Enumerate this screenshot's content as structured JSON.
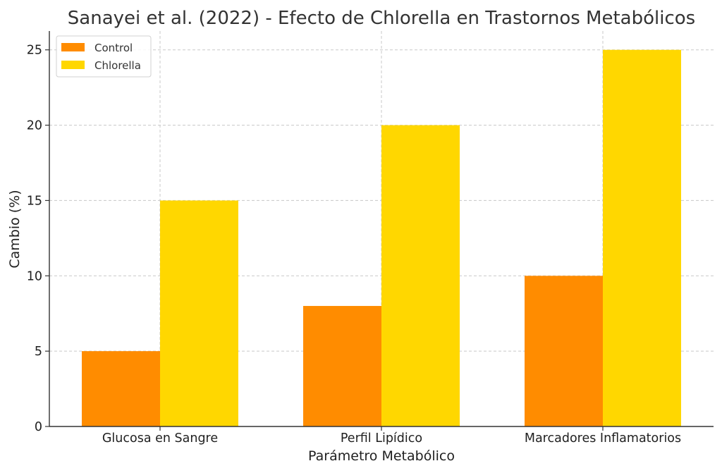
{
  "chart_data": {
    "type": "bar",
    "title": "Sanayei et al. (2022) - Efecto de Chlorella en Trastornos Metabólicos",
    "xlabel": "Parámetro Metabólico",
    "ylabel": "Cambio (%)",
    "categories": [
      "Glucosa en Sangre",
      "Perfil Lipídico",
      "Marcadores Inflamatorios"
    ],
    "series": [
      {
        "name": "Control",
        "values": [
          5,
          8,
          10
        ],
        "color": "#FF8C00"
      },
      {
        "name": "Chlorella",
        "values": [
          15,
          20,
          25
        ],
        "color": "#FFD700"
      }
    ],
    "ylim": [
      0,
      26.25
    ],
    "yticks": [
      0,
      5,
      10,
      15,
      20,
      25
    ],
    "grid": true,
    "legend_position": "top-left"
  }
}
